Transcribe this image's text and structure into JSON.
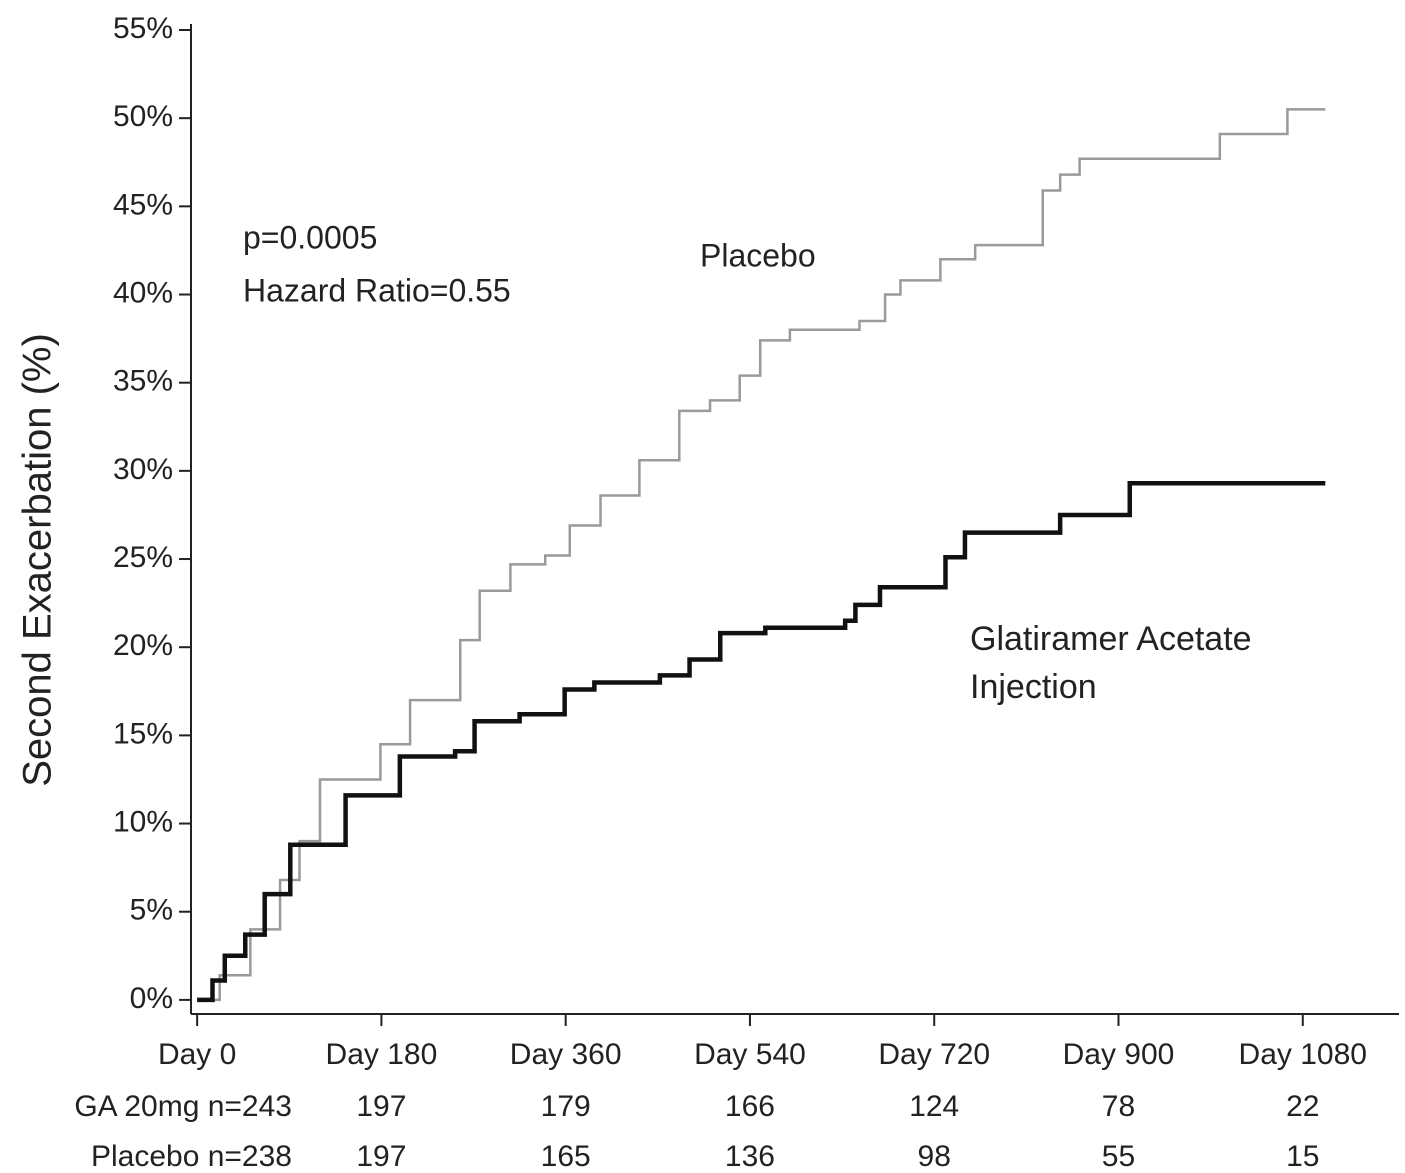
{
  "chart_data": {
    "type": "step",
    "y_label": "Second Exacerbation (%)",
    "annotations": [
      "p=0.0005",
      "Hazard Ratio=0.55"
    ],
    "xlim": [
      -6,
      1174
    ],
    "ylim": [
      -0.8,
      55
    ],
    "xticks": [
      {
        "value": 0,
        "label": "Day 0"
      },
      {
        "value": 180,
        "label": "Day 180"
      },
      {
        "value": 360,
        "label": "Day 360"
      },
      {
        "value": 540,
        "label": "Day 540"
      },
      {
        "value": 720,
        "label": "Day 720"
      },
      {
        "value": 900,
        "label": "Day 900"
      },
      {
        "value": 1080,
        "label": "Day 1080"
      }
    ],
    "yticks": [
      {
        "value": 0,
        "label": "0%"
      },
      {
        "value": 5,
        "label": "5%"
      },
      {
        "value": 10,
        "label": "10%"
      },
      {
        "value": 15,
        "label": "15%"
      },
      {
        "value": 20,
        "label": "20%"
      },
      {
        "value": 25,
        "label": "25%"
      },
      {
        "value": 30,
        "label": "30%"
      },
      {
        "value": 35,
        "label": "35%"
      },
      {
        "value": 40,
        "label": "40%"
      },
      {
        "value": 45,
        "label": "45%"
      },
      {
        "value": 50,
        "label": "50%"
      },
      {
        "value": 55,
        "label": "55%"
      }
    ],
    "series": [
      {
        "name": "Placebo",
        "color": "#9a9a9a",
        "x": [
          0,
          22,
          52,
          81,
          100,
          120,
          154,
          179,
          208,
          232,
          257,
          276,
          306,
          340,
          364,
          394,
          432,
          471,
          501,
          530,
          550,
          579,
          613,
          647,
          672,
          687,
          726,
          760,
          813,
          826,
          843,
          862,
          999,
          1062,
          1065,
          1102
        ],
        "values": [
          0,
          1.4,
          4,
          6.8,
          9,
          12.5,
          12.5,
          14.5,
          17,
          17,
          20.4,
          23.2,
          24.7,
          25.2,
          26.9,
          28.6,
          30.6,
          33.4,
          34,
          35.4,
          37.4,
          38,
          38,
          38.5,
          40,
          40.8,
          42,
          42.8,
          42.8,
          45.9,
          46.8,
          47.7,
          49.1,
          49.1,
          50.5,
          50.5
        ]
      },
      {
        "name": "Glatiramer Acetate Injection",
        "color": "#111111",
        "x": [
          0,
          15,
          27,
          47,
          66,
          91,
          125,
          145,
          179,
          198,
          252,
          271,
          315,
          359,
          388,
          452,
          481,
          511,
          555,
          633,
          643,
          667,
          721,
          731,
          750,
          838,
          843,
          906,
          911,
          1102
        ],
        "values": [
          0,
          1.1,
          2.5,
          3.7,
          6,
          8.8,
          8.8,
          11.6,
          11.6,
          13.8,
          14.1,
          15.8,
          16.2,
          17.6,
          18,
          18.4,
          19.3,
          20.8,
          21.1,
          21.5,
          22.4,
          23.4,
          23.4,
          25.1,
          26.5,
          26.5,
          27.5,
          27.5,
          29.3,
          29.3
        ]
      }
    ],
    "risk_table": [
      {
        "label": "GA 20mg n=243",
        "values": [
          197,
          179,
          166,
          124,
          78,
          22
        ]
      },
      {
        "label": "Placebo n=238",
        "values": [
          197,
          165,
          136,
          98,
          55,
          15
        ]
      }
    ]
  }
}
